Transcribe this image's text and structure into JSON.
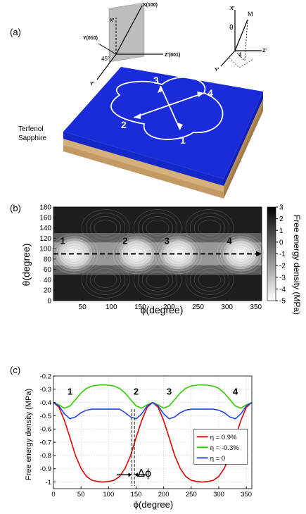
{
  "panel_a": {
    "label": "(a)",
    "layer_top": "Terfenol",
    "layer_bottom": "Sapphire",
    "state_numbers": [
      "1",
      "2",
      "3",
      "4"
    ],
    "axes_left": {
      "x_axis": "X(100)",
      "x_prime": "X'",
      "y_axis": "Y(010)",
      "y_prime": "Y'",
      "z_axis": "Z'(001)",
      "angle": "45°"
    },
    "axes_right": {
      "x_prime": "X'",
      "y_prime": "Y'",
      "z_prime": "Z'",
      "m_vector": "M",
      "theta": "θ",
      "phi": "ϕ"
    },
    "colors": {
      "film": "#1a2bd9",
      "substrate": "#caa470",
      "contour": "#ffffff"
    }
  },
  "panel_b": {
    "label": "(b)",
    "xlabel": "ϕ(degree)",
    "ylabel": "θ(degree)",
    "colorbar_label": "Free energy density (MPa)",
    "state_labels": [
      "1",
      "2",
      "3",
      "4"
    ]
  },
  "panel_c": {
    "label": "(c)",
    "xlabel": "ϕ(degree)",
    "ylabel": "Free energy density (MPa)",
    "state_labels": [
      "1",
      "2",
      "3",
      "4"
    ],
    "delta_phi_label": "Δϕ"
  },
  "chart_data": [
    {
      "type": "heatmap",
      "panel": "b",
      "xlabel": "ϕ(degree)",
      "ylabel": "θ(degree)",
      "xlim": [
        0,
        360
      ],
      "ylim": [
        0,
        180
      ],
      "x_ticks": [
        50,
        100,
        150,
        200,
        250,
        300,
        350
      ],
      "y_ticks": [
        0,
        20,
        40,
        60,
        80,
        100,
        120,
        140,
        160,
        180
      ],
      "colorbar": {
        "label": "Free energy density (MPa)",
        "min": -5,
        "max": 3,
        "ticks": [
          3,
          2,
          1,
          0,
          -1,
          -2,
          -3,
          -4,
          -5
        ]
      },
      "minima": [
        {
          "label": "1",
          "phi": 36,
          "theta": 90
        },
        {
          "label": "2",
          "phi": 144,
          "theta": 90
        },
        {
          "label": "3",
          "phi": 216,
          "theta": 90
        },
        {
          "label": "4",
          "phi": 324,
          "theta": 90
        }
      ],
      "dashed_line_theta": 90,
      "colormap": "grayscale"
    },
    {
      "type": "line",
      "panel": "c",
      "xlabel": "ϕ(degree)",
      "ylabel": "Free energy density (MPa)",
      "xlim": [
        0,
        360
      ],
      "ylim": [
        -1.05,
        -0.2
      ],
      "x_ticks": [
        0,
        50,
        100,
        150,
        200,
        250,
        300,
        350
      ],
      "y_ticks": [
        -0.2,
        -0.3,
        -0.4,
        -0.5,
        -0.6,
        -0.7,
        -0.8,
        -0.9,
        -1
      ],
      "grid": true,
      "legend_position": "right",
      "x": [
        0,
        10,
        20,
        30,
        40,
        50,
        60,
        70,
        80,
        90,
        100,
        110,
        120,
        130,
        140,
        150,
        160,
        170,
        180,
        190,
        200,
        210,
        220,
        230,
        240,
        250,
        260,
        270,
        280,
        290,
        300,
        310,
        320,
        330,
        340,
        350,
        360
      ],
      "series": [
        {
          "name": "η = 0.9%",
          "color": "#e00000",
          "values": [
            -0.4,
            -0.436,
            -0.537,
            -0.665,
            -0.8,
            -0.897,
            -0.958,
            -0.987,
            -0.996,
            -1.0,
            -0.996,
            -0.987,
            -0.958,
            -0.897,
            -0.8,
            -0.665,
            -0.537,
            -0.436,
            -0.4,
            -0.436,
            -0.537,
            -0.665,
            -0.8,
            -0.897,
            -0.958,
            -0.987,
            -0.996,
            -1.0,
            -0.996,
            -0.987,
            -0.958,
            -0.897,
            -0.8,
            -0.665,
            -0.537,
            -0.436,
            -0.4
          ]
        },
        {
          "name": "η = -0.3%",
          "color": "#33cc00",
          "values": [
            -0.4,
            -0.418,
            -0.443,
            -0.426,
            -0.378,
            -0.329,
            -0.293,
            -0.276,
            -0.269,
            -0.267,
            -0.269,
            -0.276,
            -0.293,
            -0.329,
            -0.378,
            -0.426,
            -0.443,
            -0.418,
            -0.4,
            -0.418,
            -0.443,
            -0.426,
            -0.378,
            -0.329,
            -0.293,
            -0.276,
            -0.269,
            -0.267,
            -0.269,
            -0.276,
            -0.293,
            -0.329,
            -0.378,
            -0.426,
            -0.443,
            -0.418,
            -0.4
          ]
        },
        {
          "name": "η = 0",
          "color": "#2244ee",
          "values": [
            -0.4,
            -0.426,
            -0.486,
            -0.523,
            -0.509,
            -0.477,
            -0.458,
            -0.45,
            -0.45,
            -0.45,
            -0.45,
            -0.45,
            -0.45,
            -0.477,
            -0.509,
            -0.523,
            -0.486,
            -0.426,
            -0.4,
            -0.426,
            -0.486,
            -0.523,
            -0.509,
            -0.477,
            -0.458,
            -0.45,
            -0.45,
            -0.45,
            -0.45,
            -0.45,
            -0.458,
            -0.477,
            -0.509,
            -0.523,
            -0.486,
            -0.426,
            -0.4
          ]
        }
      ],
      "annotations": [
        {
          "text": "1",
          "x": 30,
          "y": -0.34
        },
        {
          "text": "2",
          "x": 150,
          "y": -0.34
        },
        {
          "text": "3",
          "x": 210,
          "y": -0.34
        },
        {
          "text": "4",
          "x": 330,
          "y": -0.34
        },
        {
          "text": "Δϕ",
          "x": 165,
          "y": -0.96
        }
      ],
      "delta_phi_lines_x": [
        142,
        147
      ]
    }
  ]
}
